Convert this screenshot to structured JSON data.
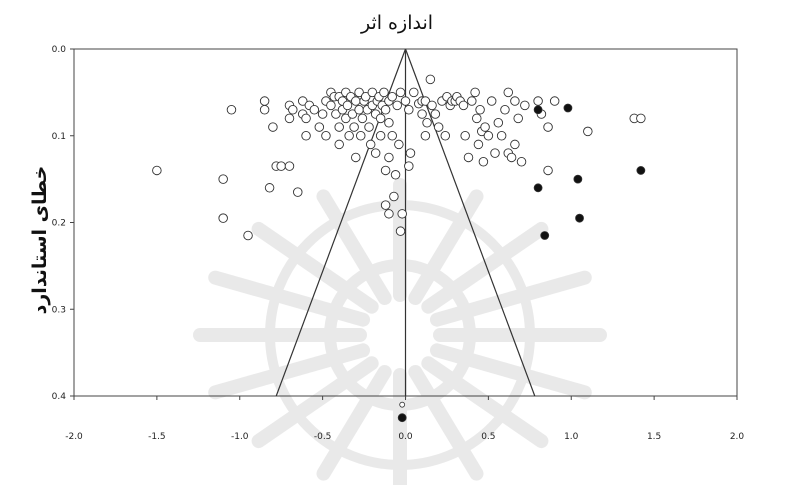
{
  "chart_data": {
    "type": "scatter",
    "title": "اندازه اثر",
    "xlabel": "",
    "ylabel": "خطای استاندارد",
    "xlim": [
      -2.0,
      2.0
    ],
    "ylim": [
      0.0,
      0.4
    ],
    "y_inverted": true,
    "x_ticks": [
      "-2.0",
      "-1.5",
      "-1.0",
      "-0.5",
      "0.0",
      "0.5",
      "1.0",
      "1.5",
      "2.0"
    ],
    "y_ticks": [
      "0.0",
      "0.1",
      "0.2",
      "0.3",
      "0.4"
    ],
    "funnel": {
      "center": 0.0,
      "apex_se": 0.0,
      "base_se": 0.4,
      "base_left": -0.78,
      "base_right": 0.78
    },
    "grid": false,
    "legend": "none",
    "series": [
      {
        "marker": "open-circle",
        "points": [
          [
            -1.5,
            0.14
          ],
          [
            -1.1,
            0.15
          ],
          [
            -1.1,
            0.195
          ],
          [
            -0.95,
            0.215
          ],
          [
            -1.05,
            0.07
          ],
          [
            -0.85,
            0.06
          ],
          [
            -0.85,
            0.07
          ],
          [
            -0.8,
            0.09
          ],
          [
            -0.82,
            0.16
          ],
          [
            -0.78,
            0.135
          ],
          [
            -0.75,
            0.135
          ],
          [
            -0.7,
            0.135
          ],
          [
            -0.65,
            0.165
          ],
          [
            -0.7,
            0.065
          ],
          [
            -0.7,
            0.08
          ],
          [
            -0.68,
            0.07
          ],
          [
            -0.62,
            0.06
          ],
          [
            -0.62,
            0.075
          ],
          [
            -0.6,
            0.08
          ],
          [
            -0.58,
            0.065
          ],
          [
            -0.55,
            0.07
          ],
          [
            -0.52,
            0.09
          ],
          [
            -0.5,
            0.075
          ],
          [
            -0.48,
            0.06
          ],
          [
            -0.48,
            0.1
          ],
          [
            -0.45,
            0.05
          ],
          [
            -0.45,
            0.065
          ],
          [
            -0.43,
            0.055
          ],
          [
            -0.42,
            0.075
          ],
          [
            -0.4,
            0.055
          ],
          [
            -0.4,
            0.09
          ],
          [
            -0.4,
            0.11
          ],
          [
            -0.38,
            0.06
          ],
          [
            -0.38,
            0.07
          ],
          [
            -0.36,
            0.05
          ],
          [
            -0.36,
            0.08
          ],
          [
            -0.35,
            0.065
          ],
          [
            -0.34,
            0.1
          ],
          [
            -0.33,
            0.055
          ],
          [
            -0.32,
            0.075
          ],
          [
            -0.31,
            0.09
          ],
          [
            -0.3,
            0.06
          ],
          [
            -0.3,
            0.125
          ],
          [
            -0.28,
            0.05
          ],
          [
            -0.28,
            0.07
          ],
          [
            -0.27,
            0.1
          ],
          [
            -0.26,
            0.08
          ],
          [
            -0.25,
            0.06
          ],
          [
            -0.24,
            0.055
          ],
          [
            -0.23,
            0.07
          ],
          [
            -0.22,
            0.09
          ],
          [
            -0.21,
            0.11
          ],
          [
            -0.2,
            0.065
          ],
          [
            -0.2,
            0.05
          ],
          [
            -0.18,
            0.075
          ],
          [
            -0.18,
            0.12
          ],
          [
            -0.17,
            0.06
          ],
          [
            -0.16,
            0.055
          ],
          [
            -0.15,
            0.08
          ],
          [
            -0.15,
            0.1
          ],
          [
            -0.14,
            0.065
          ],
          [
            -0.13,
            0.05
          ],
          [
            -0.12,
            0.07
          ],
          [
            -0.12,
            0.14
          ],
          [
            -0.1,
            0.06
          ],
          [
            -0.1,
            0.085
          ],
          [
            -0.08,
            0.055
          ],
          [
            -0.08,
            0.1
          ],
          [
            -0.06,
            0.145
          ],
          [
            -0.05,
            0.065
          ],
          [
            -0.04,
            0.11
          ],
          [
            -0.03,
            0.05
          ],
          [
            -0.02,
            0.19
          ],
          [
            0.0,
            0.06
          ],
          [
            0.02,
            0.07
          ],
          [
            -0.12,
            0.18
          ],
          [
            -0.1,
            0.19
          ],
          [
            -0.07,
            0.17
          ],
          [
            -0.03,
            0.21
          ],
          [
            0.05,
            0.05
          ],
          [
            0.08,
            0.063
          ],
          [
            0.1,
            0.06
          ],
          [
            0.12,
            0.06
          ],
          [
            0.13,
            0.085
          ],
          [
            0.15,
            0.035
          ],
          [
            0.16,
            0.065
          ],
          [
            0.18,
            0.075
          ],
          [
            0.2,
            0.09
          ],
          [
            0.22,
            0.06
          ],
          [
            0.24,
            0.1
          ],
          [
            0.25,
            0.055
          ],
          [
            0.27,
            0.065
          ],
          [
            0.28,
            0.06
          ],
          [
            0.3,
            0.06
          ],
          [
            0.31,
            0.055
          ],
          [
            0.33,
            0.06
          ],
          [
            0.35,
            0.065
          ],
          [
            0.36,
            0.1
          ],
          [
            0.38,
            0.125
          ],
          [
            0.4,
            0.06
          ],
          [
            0.42,
            0.05
          ],
          [
            0.43,
            0.08
          ],
          [
            0.44,
            0.11
          ],
          [
            0.45,
            0.07
          ],
          [
            0.46,
            0.095
          ],
          [
            0.47,
            0.13
          ],
          [
            0.48,
            0.09
          ],
          [
            0.5,
            0.1
          ],
          [
            0.52,
            0.06
          ],
          [
            0.54,
            0.12
          ],
          [
            0.56,
            0.085
          ],
          [
            0.6,
            0.07
          ],
          [
            0.62,
            0.05
          ],
          [
            0.62,
            0.12
          ],
          [
            0.64,
            0.125
          ],
          [
            0.66,
            0.06
          ],
          [
            0.68,
            0.08
          ],
          [
            0.7,
            0.13
          ],
          [
            0.72,
            0.065
          ],
          [
            0.8,
            0.06
          ],
          [
            0.82,
            0.075
          ],
          [
            0.86,
            0.09
          ],
          [
            0.9,
            0.06
          ],
          [
            0.86,
            0.14
          ],
          [
            1.1,
            0.095
          ],
          [
            1.38,
            0.08
          ],
          [
            1.42,
            0.08
          ],
          [
            -0.6,
            0.1
          ],
          [
            0.58,
            0.1
          ],
          [
            0.66,
            0.11
          ],
          [
            0.1,
            0.075
          ],
          [
            0.02,
            0.135
          ],
          [
            -0.1,
            0.125
          ],
          [
            0.12,
            0.1
          ],
          [
            0.03,
            0.12
          ]
        ]
      },
      {
        "marker": "filled-circle",
        "points": [
          [
            0.8,
            0.07
          ],
          [
            0.98,
            0.068
          ],
          [
            0.8,
            0.16
          ],
          [
            1.04,
            0.15
          ],
          [
            1.05,
            0.195
          ],
          [
            1.42,
            0.14
          ],
          [
            0.84,
            0.215
          ],
          [
            -0.02,
            0.425
          ]
        ]
      }
    ],
    "outside_point_open": [
      -0.02,
      0.41
    ]
  }
}
